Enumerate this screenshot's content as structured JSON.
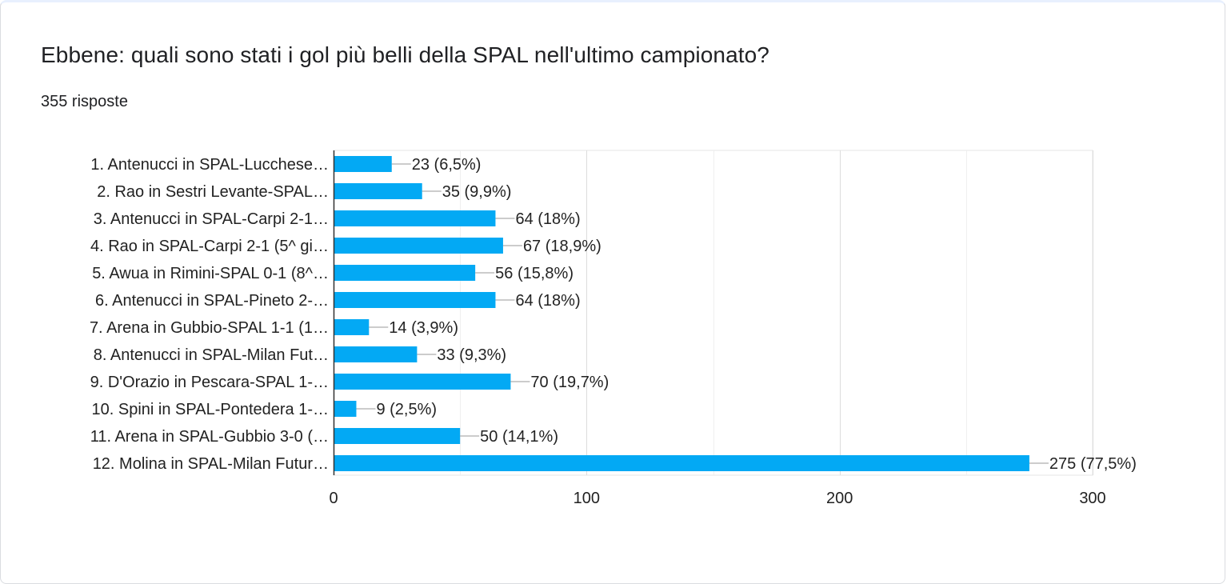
{
  "question": {
    "title": "Ebbene: quali sono stati i gol più belli della SPAL nell'ultimo campionato?",
    "response_count": "355 risposte"
  },
  "colors": {
    "bar": "#03a9f4",
    "grid": "#e6e6e6",
    "axis": "#333333",
    "text": "#222222",
    "connector": "#999999"
  },
  "chart_data": {
    "type": "bar",
    "orientation": "horizontal",
    "title": "",
    "xlabel": "",
    "ylabel": "",
    "xlim": [
      0,
      300
    ],
    "ticks": [
      0,
      100,
      200,
      300
    ],
    "tick_labels": [
      "0",
      "100",
      "200",
      "300"
    ],
    "grid": true,
    "categories": [
      "1. Antenucci in SPAL-Lucchese…",
      "2. Rao in Sestri Levante-SPAL…",
      "3. Antenucci in SPAL-Carpi 2-1…",
      "4. Rao in SPAL-Carpi 2-1 (5^ gi…",
      "5. Awua in Rimini-SPAL 0-1 (8^…",
      "6. Antenucci in SPAL-Pineto 2-…",
      "7. Arena in Gubbio-SPAL 1-1 (1…",
      "8. Antenucci in SPAL-Milan Fut…",
      "9. D'Orazio in Pescara-SPAL 1-…",
      "10. Spini in SPAL-Pontedera 1-…",
      "11. Arena in SPAL-Gubbio 3-0 (…",
      "12. Molina in SPAL-Milan Futur…"
    ],
    "values": [
      23,
      35,
      64,
      67,
      56,
      64,
      14,
      33,
      70,
      9,
      50,
      275
    ],
    "value_labels": [
      "23 (6,5%)",
      "35 (9,9%)",
      "64 (18%)",
      "67 (18,9%)",
      "56 (15,8%)",
      "64 (18%)",
      "14 (3,9%)",
      "33 (9,3%)",
      "70 (19,7%)",
      "9 (2,5%)",
      "50 (14,1%)",
      "275 (77,5%)"
    ]
  }
}
